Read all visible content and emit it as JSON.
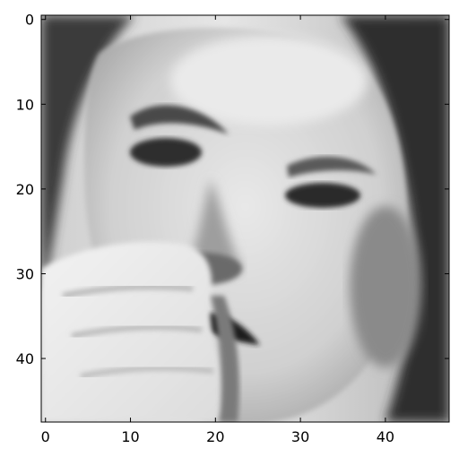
{
  "chart_data": {
    "type": "heatmap",
    "title": "",
    "xlabel": "",
    "ylabel": "",
    "colormap": "gray",
    "image_size": [
      48,
      48
    ],
    "image_description": "48x48 grayscale face crop, pixel coordinates 0-47 on both axes",
    "xlim": [
      -0.5,
      47.5
    ],
    "ylim": [
      47.5,
      -0.5
    ],
    "x_ticks": [
      0,
      10,
      20,
      30,
      40
    ],
    "y_ticks": [
      0,
      10,
      20,
      30,
      40
    ],
    "x_tick_labels": [
      "0",
      "10",
      "20",
      "30",
      "40"
    ],
    "y_tick_labels": [
      "0",
      "10",
      "20",
      "30",
      "40"
    ],
    "grid": false,
    "legend": "none"
  },
  "colors": {
    "axis": "#000000",
    "background": "#ffffff",
    "skin": "#d9d9d9",
    "hair": "#2a2a2a",
    "shadow": "#6e6e6e"
  }
}
